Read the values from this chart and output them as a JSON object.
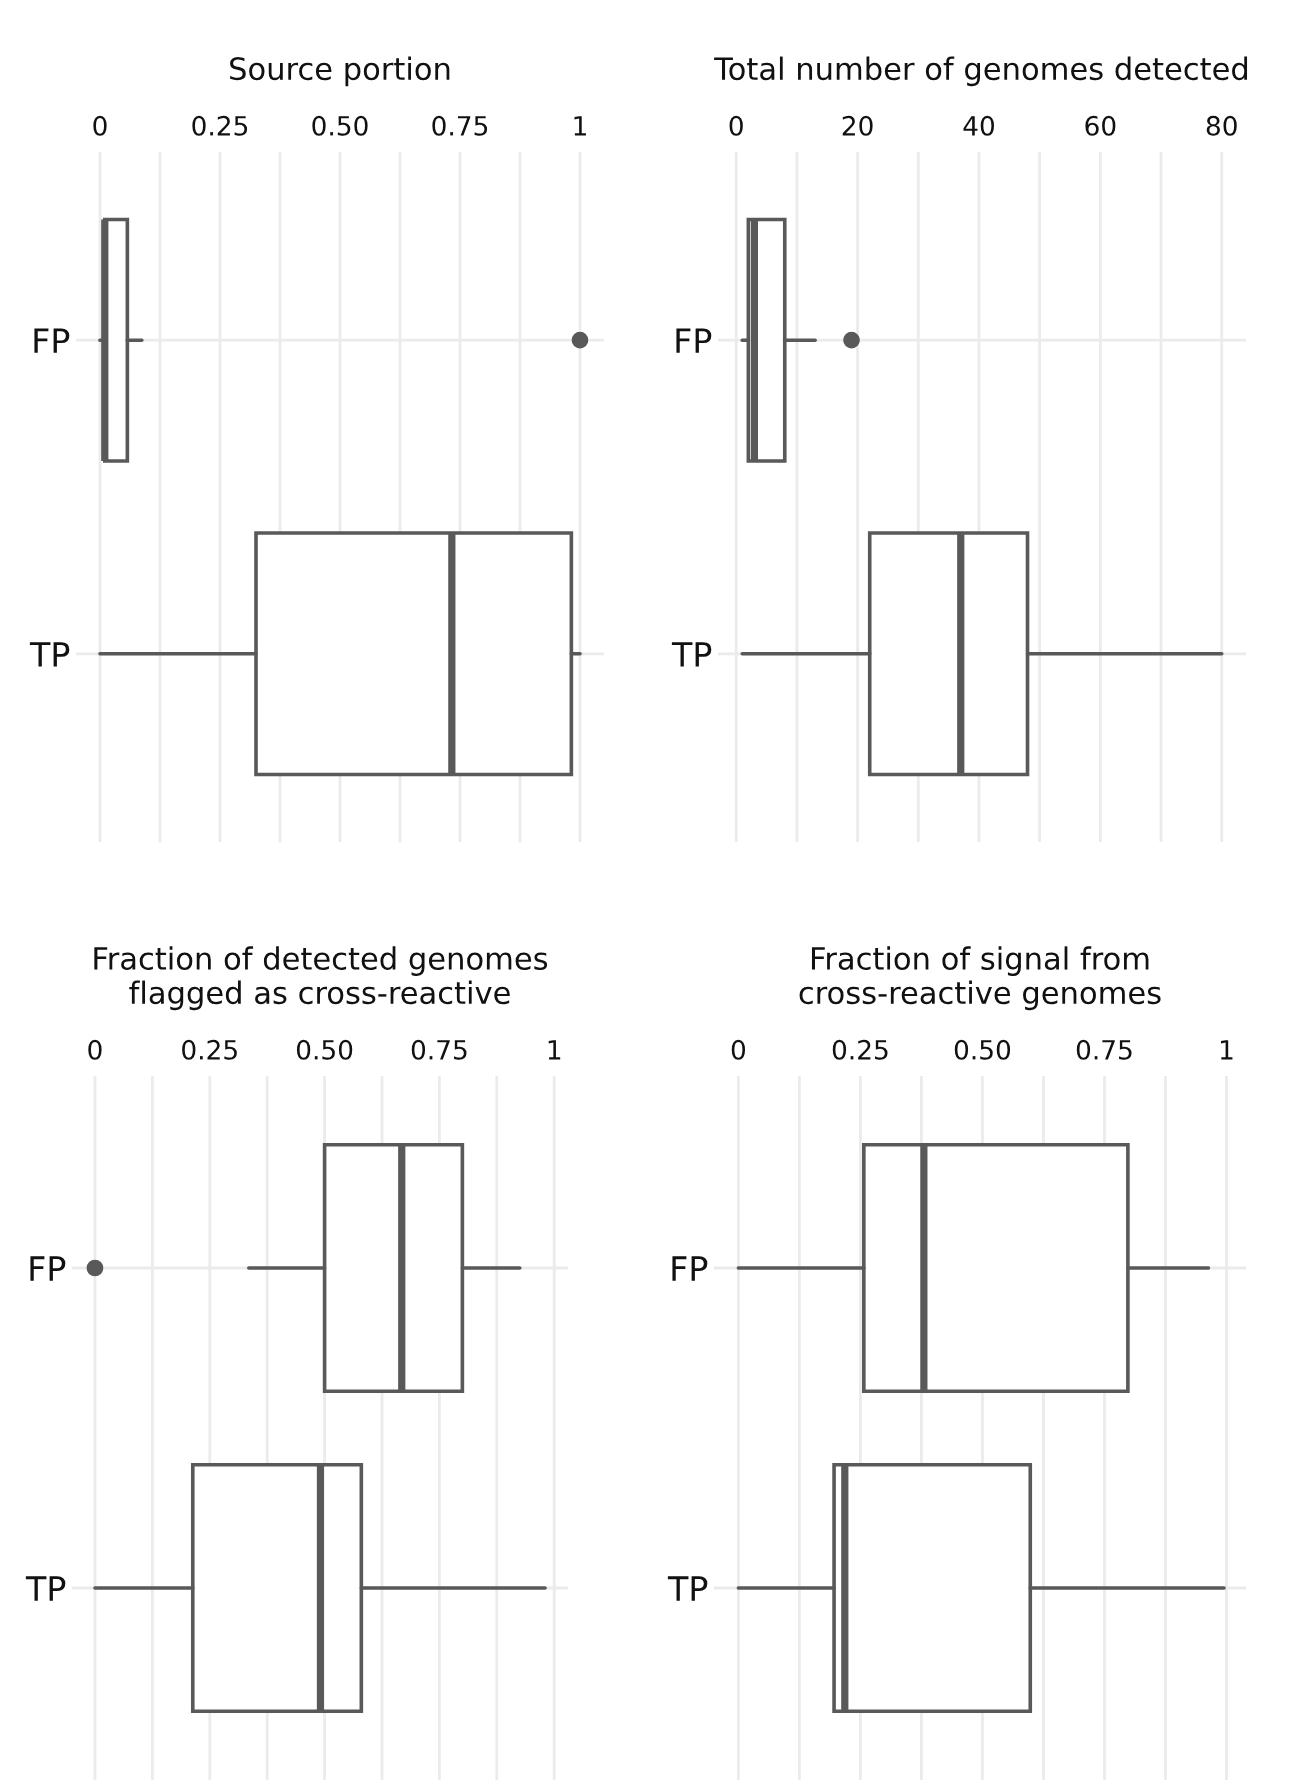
{
  "chart_data": [
    {
      "type": "box",
      "title": "Source portion",
      "orientation": "horizontal",
      "categories": [
        "FP",
        "TP"
      ],
      "grid": true,
      "xlim": [
        -0.05,
        1.05
      ],
      "xticks": [
        0,
        {
          "value": 0.125,
          "label": null
        },
        {
          "value": 0.25,
          "label": "0.25"
        },
        {
          "value": 0.375,
          "label": null
        },
        {
          "value": 0.5,
          "label": "0.50"
        },
        {
          "value": 0.625,
          "label": null
        },
        {
          "value": 0.75,
          "label": "0.75"
        },
        {
          "value": 0.875,
          "label": null
        },
        1
      ],
      "series": [
        {
          "color": "#595959",
          "boxes": [
            {
              "low": 0,
              "q1": 0.01,
              "median": 0.01,
              "q3": 0.057,
              "high": 0.087,
              "outliers": [
                1
              ]
            },
            {
              "low": 0,
              "q1": 0.325,
              "median": 0.733,
              "q3": 0.982,
              "high": 1
            }
          ]
        }
      ]
    },
    {
      "type": "box",
      "title": "Total number of genomes detected",
      "orientation": "horizontal",
      "categories": [
        "FP",
        "TP"
      ],
      "grid": true,
      "xlim": [
        -3,
        84
      ],
      "xticks": [
        0,
        {
          "value": 10,
          "label": null
        },
        20,
        {
          "value": 30,
          "label": null
        },
        40,
        {
          "value": 50,
          "label": null
        },
        60,
        {
          "value": 70,
          "label": null
        },
        80
      ],
      "series": [
        {
          "color": "#595959",
          "boxes": [
            {
              "low": 1,
              "q1": 2,
              "median": 3,
              "q3": 8,
              "high": 13,
              "outliers": [
                19
              ]
            },
            {
              "low": 1,
              "q1": 22,
              "median": 37,
              "q3": 48,
              "high": 80
            }
          ]
        }
      ]
    },
    {
      "type": "box",
      "title": "Fraction of detected genomes\nflagged as cross-reactive",
      "orientation": "horizontal",
      "categories": [
        "FP",
        "TP"
      ],
      "grid": true,
      "xlim": [
        -0.05,
        1.03
      ],
      "xticks": [
        0,
        {
          "value": 0.125,
          "label": null
        },
        {
          "value": 0.25,
          "label": "0.25"
        },
        {
          "value": 0.375,
          "label": null
        },
        {
          "value": 0.5,
          "label": "0.50"
        },
        {
          "value": 0.625,
          "label": null
        },
        {
          "value": 0.75,
          "label": "0.75"
        },
        {
          "value": 0.875,
          "label": null
        },
        1
      ],
      "series": [
        {
          "color": "#595959",
          "boxes": [
            {
              "low": 0.335,
              "q1": 0.5,
              "median": 0.668,
              "q3": 0.8,
              "high": 0.925,
              "outliers": [
                0
              ]
            },
            {
              "low": 0,
              "q1": 0.213,
              "median": 0.491,
              "q3": 0.58,
              "high": 0.98
            }
          ]
        }
      ]
    },
    {
      "type": "box",
      "title": "Fraction of signal from\ncross-reactive genomes",
      "orientation": "horizontal",
      "categories": [
        "FP",
        "TP"
      ],
      "grid": true,
      "xlim": [
        -0.05,
        1.04
      ],
      "xticks": [
        0,
        {
          "value": 0.125,
          "label": null
        },
        {
          "value": 0.25,
          "label": "0.25"
        },
        {
          "value": 0.375,
          "label": null
        },
        {
          "value": 0.5,
          "label": "0.50"
        },
        {
          "value": 0.625,
          "label": null
        },
        {
          "value": 0.75,
          "label": "0.75"
        },
        {
          "value": 0.875,
          "label": null
        },
        1
      ],
      "series": [
        {
          "color": "#595959",
          "boxes": [
            {
              "low": 0,
              "q1": 0.257,
              "median": 0.38,
              "q3": 0.798,
              "high": 0.963
            },
            {
              "low": 0,
              "q1": 0.196,
              "median": 0.218,
              "q3": 0.598,
              "high": 0.995
            }
          ]
        }
      ]
    }
  ]
}
